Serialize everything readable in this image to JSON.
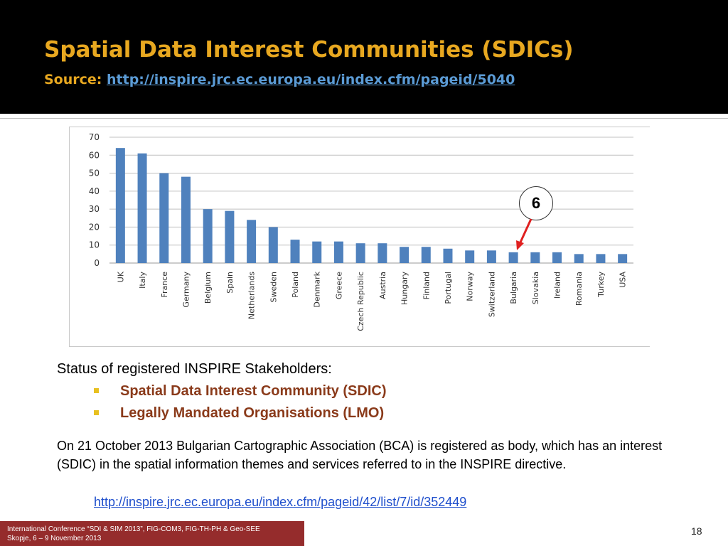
{
  "slide": {
    "title": "Spatial Data Interest Communities (SDICs)",
    "source_label": "Source: ",
    "source_url": "http://inspire.jrc.ec.europa.eu/index.cfm/pageid/5040",
    "callout_value": "6",
    "status_heading": "Status of registered INSPIRE Stakeholders:",
    "bullets": [
      "Spatial Data Interest Community (SDIC)",
      "Legally Mandated Organisations (LMO)"
    ],
    "paragraph": "On 21 October 2013 Bulgarian Cartographic Association (BCA) is registered as body, which has an interest (SDIC) in the spatial information themes and services referred to in the INSPIRE directive.",
    "paragraph_link": "http://inspire.jrc.ec.europa.eu/index.cfm/pageid/42/list/7/id/352449",
    "footer_line1": "International Conference “SDI & SIM 2013”, FIG-COM3, FIG-TH-PH & Geo-SEE",
    "footer_line2": "Skopje, 6 – 9 November 2013",
    "page_number": "18",
    "colors": {
      "header_bg": "#000000",
      "title": "#e8a820",
      "bar": "#4f81bd",
      "bullet_text": "#8a3a1a",
      "footer_bg": "#952c2c",
      "arrow": "#e02020"
    }
  },
  "chart_data": {
    "type": "bar",
    "categories": [
      "UK",
      "Italy",
      "France",
      "Germany",
      "Belgium",
      "Spain",
      "Netherlands",
      "Sweden",
      "Poland",
      "Denmark",
      "Greece",
      "Czech Republic",
      "Austria",
      "Hungary",
      "Finland",
      "Portugal",
      "Norway",
      "Switzerland",
      "Bulgaria",
      "Slovakia",
      "Ireland",
      "Romania",
      "Turkey",
      "USA"
    ],
    "values": [
      64,
      61,
      50,
      48,
      30,
      29,
      24,
      20,
      13,
      12,
      12,
      11,
      11,
      9,
      9,
      8,
      7,
      7,
      6,
      6,
      6,
      5,
      5,
      5
    ],
    "y_ticks": [
      0,
      10,
      20,
      30,
      40,
      50,
      60,
      70
    ],
    "ylim": [
      0,
      70
    ],
    "grid": true,
    "highlight_category": "Bulgaria",
    "highlight_value": 6
  }
}
